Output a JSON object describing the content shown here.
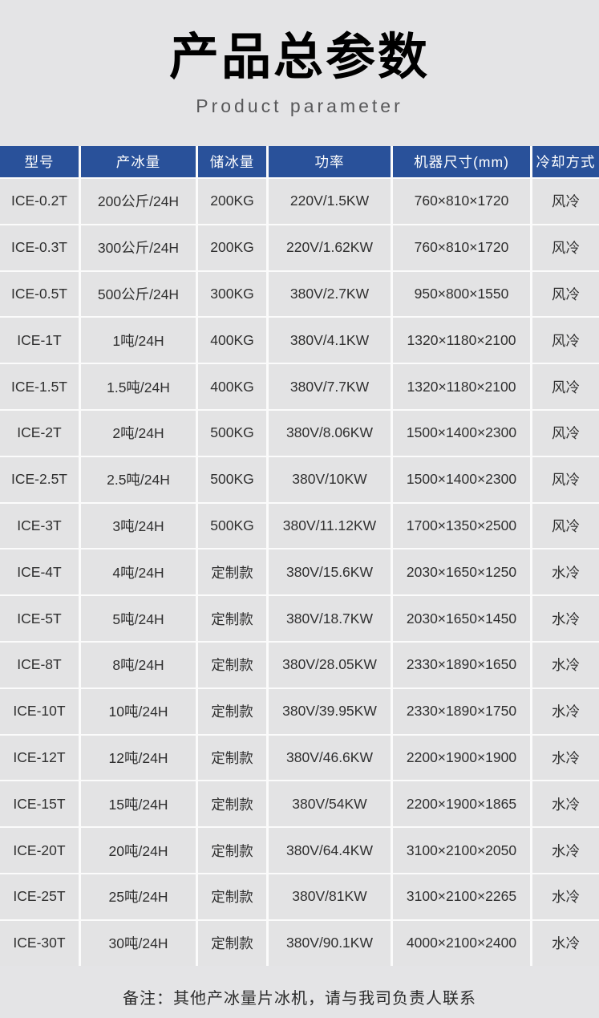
{
  "page": {
    "title": "产品总参数",
    "subtitle": "Product  parameter",
    "note": "备注：其他产冰量片冰机，请与我司负责人联系"
  },
  "colors": {
    "header_bg": "#29519a",
    "header_text": "#ffffff",
    "cell_bg": "#e3e3e4",
    "grid_line": "#fbfbfb",
    "page_bg": "#e4e4e6",
    "body_text": "#2f2f2f"
  },
  "table": {
    "columns": [
      "型号",
      "产冰量",
      "储冰量",
      "功率",
      "机器尺寸(mm)",
      "冷却方式"
    ],
    "column_keys": [
      "model",
      "ice_production",
      "ice_storage",
      "power",
      "dimensions",
      "cooling"
    ],
    "rows": [
      {
        "model": "ICE-0.2T",
        "ice_production": "200公斤/24H",
        "ice_storage": "200KG",
        "power": "220V/1.5KW",
        "dimensions": "760×810×1720",
        "cooling": "风冷"
      },
      {
        "model": "ICE-0.3T",
        "ice_production": "300公斤/24H",
        "ice_storage": "200KG",
        "power": "220V/1.62KW",
        "dimensions": "760×810×1720",
        "cooling": "风冷"
      },
      {
        "model": "ICE-0.5T",
        "ice_production": "500公斤/24H",
        "ice_storage": "300KG",
        "power": "380V/2.7KW",
        "dimensions": "950×800×1550",
        "cooling": "风冷"
      },
      {
        "model": "ICE-1T",
        "ice_production": "1吨/24H",
        "ice_storage": "400KG",
        "power": "380V/4.1KW",
        "dimensions": "1320×1180×2100",
        "cooling": "风冷"
      },
      {
        "model": "ICE-1.5T",
        "ice_production": "1.5吨/24H",
        "ice_storage": "400KG",
        "power": "380V/7.7KW",
        "dimensions": "1320×1180×2100",
        "cooling": "风冷"
      },
      {
        "model": "ICE-2T",
        "ice_production": "2吨/24H",
        "ice_storage": "500KG",
        "power": "380V/8.06KW",
        "dimensions": "1500×1400×2300",
        "cooling": "风冷"
      },
      {
        "model": "ICE-2.5T",
        "ice_production": "2.5吨/24H",
        "ice_storage": "500KG",
        "power": "380V/10KW",
        "dimensions": "1500×1400×2300",
        "cooling": "风冷"
      },
      {
        "model": "ICE-3T",
        "ice_production": "3吨/24H",
        "ice_storage": "500KG",
        "power": "380V/11.12KW",
        "dimensions": "1700×1350×2500",
        "cooling": "风冷"
      },
      {
        "model": "ICE-4T",
        "ice_production": "4吨/24H",
        "ice_storage": "定制款",
        "power": "380V/15.6KW",
        "dimensions": "2030×1650×1250",
        "cooling": "水冷"
      },
      {
        "model": "ICE-5T",
        "ice_production": "5吨/24H",
        "ice_storage": "定制款",
        "power": "380V/18.7KW",
        "dimensions": "2030×1650×1450",
        "cooling": "水冷"
      },
      {
        "model": "ICE-8T",
        "ice_production": "8吨/24H",
        "ice_storage": "定制款",
        "power": "380V/28.05KW",
        "dimensions": "2330×1890×1650",
        "cooling": "水冷"
      },
      {
        "model": "ICE-10T",
        "ice_production": "10吨/24H",
        "ice_storage": "定制款",
        "power": "380V/39.95KW",
        "dimensions": "2330×1890×1750",
        "cooling": "水冷"
      },
      {
        "model": "ICE-12T",
        "ice_production": "12吨/24H",
        "ice_storage": "定制款",
        "power": "380V/46.6KW",
        "dimensions": "2200×1900×1900",
        "cooling": "水冷"
      },
      {
        "model": "ICE-15T",
        "ice_production": "15吨/24H",
        "ice_storage": "定制款",
        "power": "380V/54KW",
        "dimensions": "2200×1900×1865",
        "cooling": "水冷"
      },
      {
        "model": "ICE-20T",
        "ice_production": "20吨/24H",
        "ice_storage": "定制款",
        "power": "380V/64.4KW",
        "dimensions": "3100×2100×2050",
        "cooling": "水冷"
      },
      {
        "model": "ICE-25T",
        "ice_production": "25吨/24H",
        "ice_storage": "定制款",
        "power": "380V/81KW",
        "dimensions": "3100×2100×2265",
        "cooling": "水冷"
      },
      {
        "model": "ICE-30T",
        "ice_production": "30吨/24H",
        "ice_storage": "定制款",
        "power": "380V/90.1KW",
        "dimensions": "4000×2100×2400",
        "cooling": "水冷"
      }
    ]
  }
}
